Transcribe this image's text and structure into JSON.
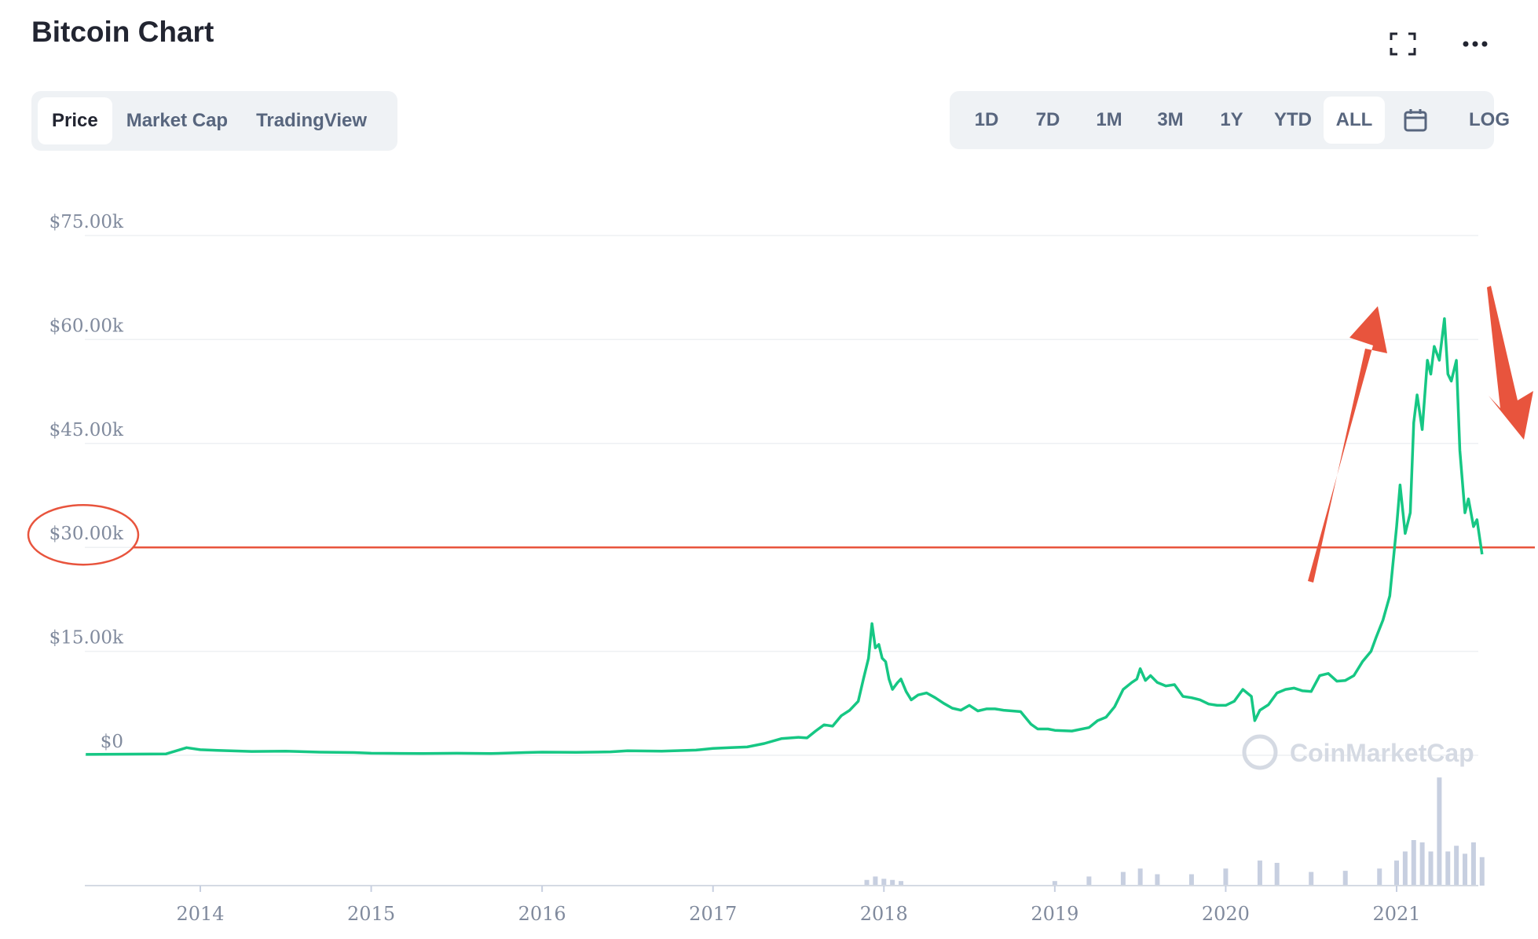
{
  "header": {
    "title": "Bitcoin Chart",
    "icons": [
      "fullscreen-icon",
      "more-icon"
    ]
  },
  "tabs": [
    {
      "label": "Price",
      "active": true
    },
    {
      "label": "Market Cap",
      "active": false
    },
    {
      "label": "TradingView",
      "active": false
    }
  ],
  "ranges": {
    "items": [
      {
        "label": "1D",
        "active": false
      },
      {
        "label": "7D",
        "active": false
      },
      {
        "label": "1M",
        "active": false
      },
      {
        "label": "3M",
        "active": false
      },
      {
        "label": "1Y",
        "active": false
      },
      {
        "label": "YTD",
        "active": false
      },
      {
        "label": "ALL",
        "active": true
      }
    ],
    "calendar_icon": "calendar-icon",
    "log_label": "LOG"
  },
  "watermark": "CoinMarketCap",
  "colors": {
    "price_line": "#16c784",
    "volume": "#c7cfe0",
    "annotation": "#e8543d",
    "grid": "#eef0f3",
    "axis_text": "#808a9d"
  },
  "chart_data": {
    "type": "line",
    "series": [
      {
        "x": [
          2013.33,
          2013.8,
          2013.92,
          2014.0,
          2014.1,
          2014.3,
          2014.5,
          2014.7,
          2014.9,
          2015.0,
          2015.1,
          2015.3,
          2015.5,
          2015.7,
          2015.9,
          2016.0,
          2016.2,
          2016.4,
          2016.5,
          2016.7,
          2016.9,
          2017.0,
          2017.1,
          2017.2,
          2017.3,
          2017.4,
          2017.5,
          2017.55,
          2017.6,
          2017.65,
          2017.7,
          2017.75,
          2017.8,
          2017.85,
          2017.88,
          2017.91,
          2017.93,
          2017.95,
          2017.97,
          2017.99,
          2018.01,
          2018.03,
          2018.05,
          2018.08,
          2018.1,
          2018.13,
          2018.16,
          2018.2,
          2018.25,
          2018.3,
          2018.35,
          2018.4,
          2018.45,
          2018.5,
          2018.55,
          2018.6,
          2018.65,
          2018.7,
          2018.8,
          2018.86,
          2018.9,
          2018.96,
          2019.0,
          2019.1,
          2019.2,
          2019.25,
          2019.3,
          2019.35,
          2019.4,
          2019.45,
          2019.48,
          2019.5,
          2019.53,
          2019.56,
          2019.6,
          2019.65,
          2019.7,
          2019.75,
          2019.8,
          2019.85,
          2019.9,
          2019.95,
          2020.0,
          2020.05,
          2020.1,
          2020.15,
          2020.17,
          2020.2,
          2020.25,
          2020.3,
          2020.35,
          2020.4,
          2020.45,
          2020.5,
          2020.55,
          2020.6,
          2020.65,
          2020.7,
          2020.75,
          2020.8,
          2020.85,
          2020.88,
          2020.92,
          2020.96,
          2021.0,
          2021.02,
          2021.05,
          2021.08,
          2021.1,
          2021.12,
          2021.15,
          2021.18,
          2021.2,
          2021.22,
          2021.25,
          2021.28,
          2021.3,
          2021.32,
          2021.35,
          2021.37,
          2021.4,
          2021.42,
          2021.45,
          2021.47,
          2021.5
        ],
        "y": [
          120,
          200,
          1100,
          800,
          700,
          550,
          600,
          450,
          400,
          300,
          280,
          250,
          300,
          250,
          400,
          450,
          420,
          500,
          650,
          600,
          750,
          1000,
          1100,
          1200,
          1700,
          2400,
          2600,
          2500,
          3500,
          4400,
          4200,
          5700,
          6500,
          7800,
          11000,
          14000,
          19000,
          15500,
          16000,
          14000,
          13500,
          11000,
          9500,
          10500,
          11000,
          9200,
          8000,
          8700,
          9000,
          8300,
          7500,
          6800,
          6500,
          7200,
          6400,
          6700,
          6700,
          6500,
          6300,
          4500,
          3800,
          3800,
          3600,
          3500,
          4000,
          5000,
          5500,
          7000,
          9500,
          10500,
          11000,
          12500,
          10800,
          11500,
          10500,
          10000,
          10200,
          8500,
          8300,
          8000,
          7400,
          7200,
          7200,
          7800,
          9500,
          8500,
          5000,
          6500,
          7300,
          9000,
          9500,
          9700,
          9300,
          9200,
          11500,
          11800,
          10700,
          10800,
          11500,
          13500,
          15000,
          17000,
          19500,
          23000,
          33000,
          39000,
          32000,
          35000,
          48000,
          52000,
          47000,
          57000,
          55000,
          59000,
          57000,
          63000,
          55000,
          54000,
          57000,
          44000,
          35000,
          37000,
          33000,
          34000,
          29000
        ],
        "name": ""
      }
    ],
    "volume_x": [
      2017.9,
      2017.95,
      2018.0,
      2018.05,
      2018.1,
      2019.0,
      2019.2,
      2019.4,
      2019.5,
      2019.6,
      2019.8,
      2020.0,
      2020.2,
      2020.3,
      2020.5,
      2020.7,
      2020.9,
      2021.0,
      2021.05,
      2021.1,
      2021.15,
      2021.2,
      2021.25,
      2021.3,
      2021.35,
      2021.4,
      2021.45,
      2021.5
    ],
    "volume_rel": [
      0.05,
      0.08,
      0.06,
      0.05,
      0.04,
      0.04,
      0.08,
      0.12,
      0.15,
      0.1,
      0.1,
      0.15,
      0.22,
      0.2,
      0.12,
      0.13,
      0.15,
      0.22,
      0.3,
      0.4,
      0.38,
      0.3,
      0.95,
      0.3,
      0.35,
      0.28,
      0.38,
      0.25
    ],
    "ylim": [
      0,
      75000
    ],
    "yticks": [
      "$0",
      "$15.00k",
      "$30.00k",
      "$45.00k",
      "$60.00k",
      "$75.00k"
    ],
    "ytick_values": [
      0,
      15000,
      30000,
      45000,
      60000,
      75000
    ],
    "xticks": [
      "2014",
      "2015",
      "2016",
      "2017",
      "2018",
      "2019",
      "2020",
      "2021"
    ],
    "xtick_values": [
      2014,
      2015,
      2016,
      2017,
      2018,
      2019,
      2020,
      2021
    ],
    "xlim": [
      2013.33,
      2021.5
    ],
    "reference_line": 30000,
    "grid": true
  }
}
